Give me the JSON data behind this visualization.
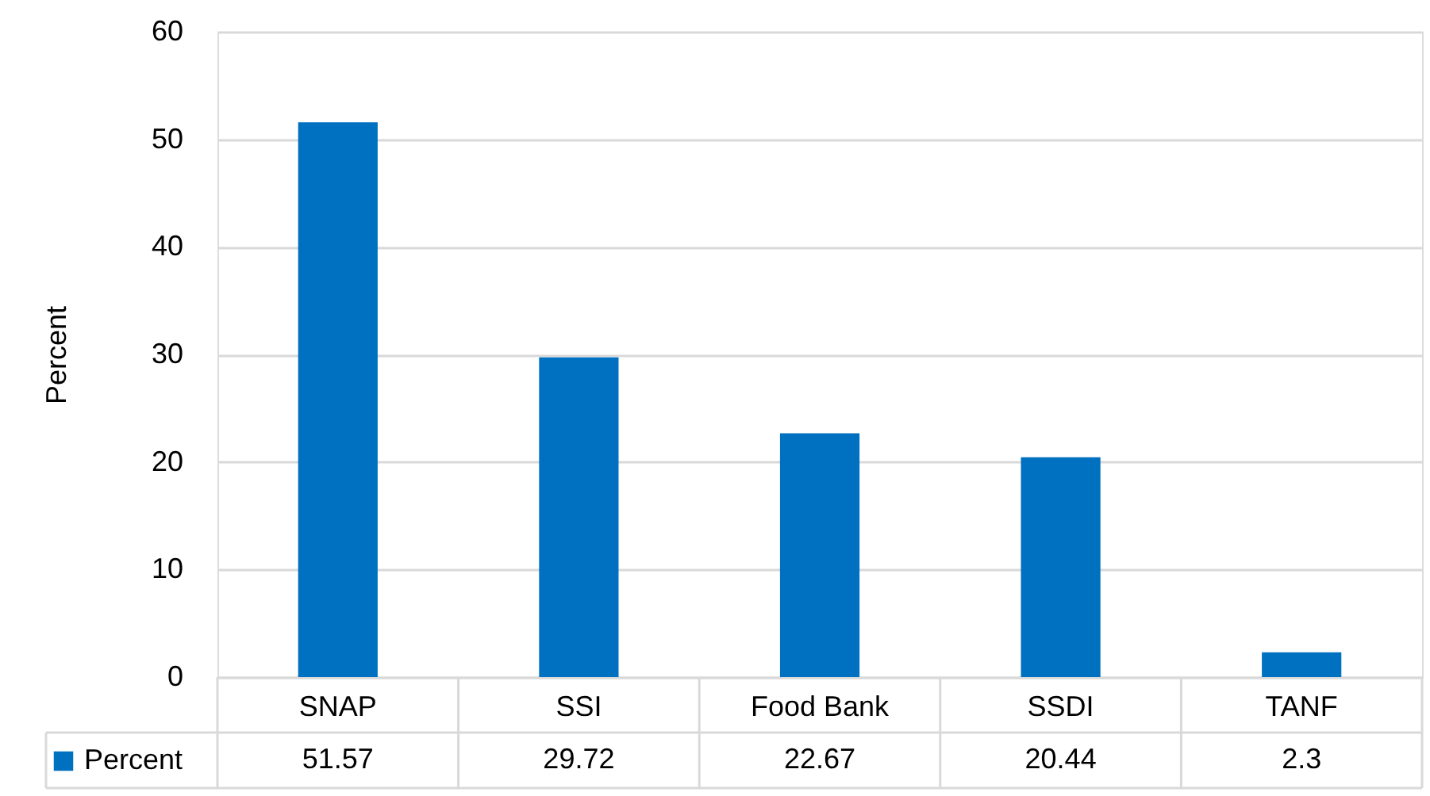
{
  "chart_data": {
    "type": "bar",
    "ylabel": "Percent",
    "categories": [
      "SNAP",
      "SSI",
      "Food Bank",
      "SSDI",
      "TANF"
    ],
    "series": [
      {
        "name": "Percent",
        "color": "#0070c0",
        "values": [
          51.57,
          29.72,
          22.67,
          20.44,
          2.3
        ]
      }
    ],
    "ylim": [
      0,
      60
    ],
    "yticks": [
      0,
      10,
      20,
      30,
      40,
      50,
      60
    ],
    "grid": "y",
    "data_labels": true,
    "legend": "bottom left"
  }
}
